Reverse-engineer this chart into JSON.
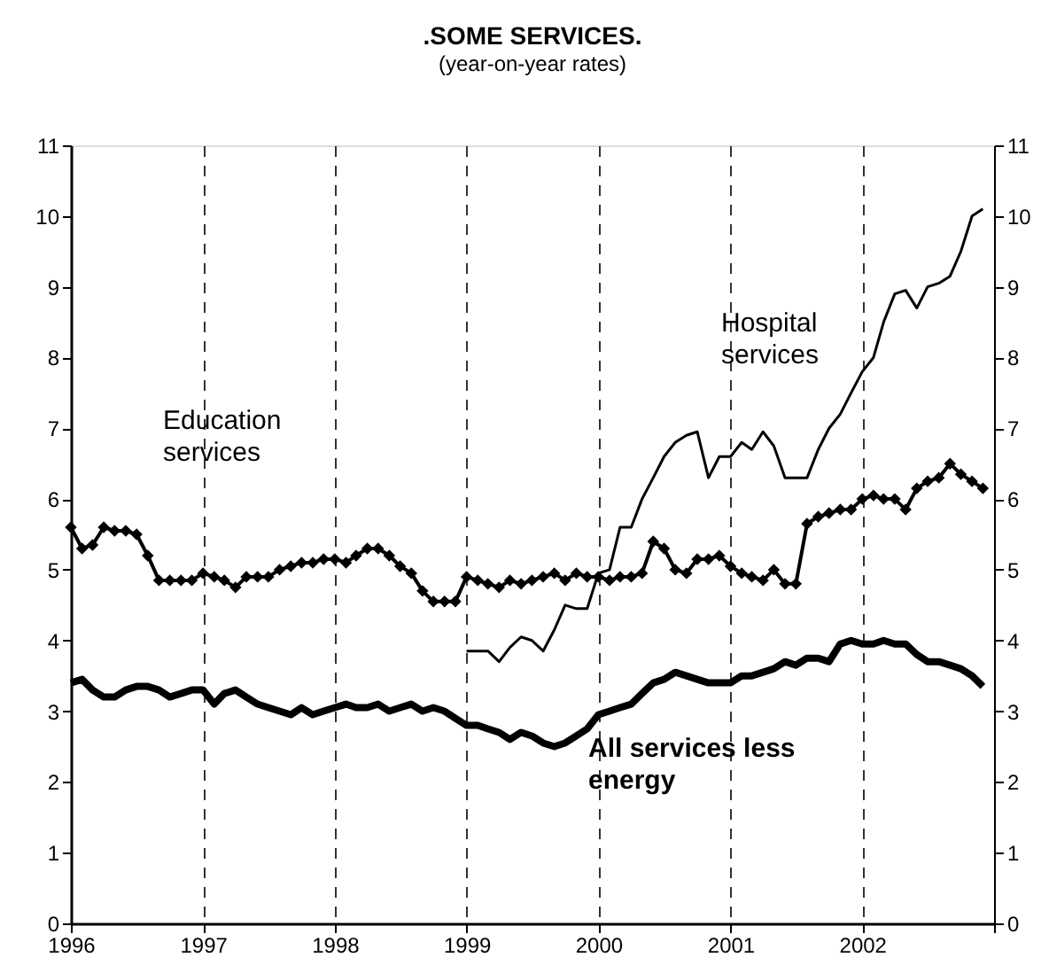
{
  "chart_data": {
    "type": "line",
    "title": ".SOME SERVICES.",
    "subtitle": "(year-on-year rates)",
    "x": [
      "1996-01",
      "1996-02",
      "1996-03",
      "1996-04",
      "1996-05",
      "1996-06",
      "1996-07",
      "1996-08",
      "1996-09",
      "1996-10",
      "1996-11",
      "1996-12",
      "1997-01",
      "1997-02",
      "1997-03",
      "1997-04",
      "1997-05",
      "1997-06",
      "1997-07",
      "1997-08",
      "1997-09",
      "1997-10",
      "1997-11",
      "1997-12",
      "1998-01",
      "1998-02",
      "1998-03",
      "1998-04",
      "1998-05",
      "1998-06",
      "1998-07",
      "1998-08",
      "1998-09",
      "1998-10",
      "1998-11",
      "1998-12",
      "1999-01",
      "1999-02",
      "1999-03",
      "1999-04",
      "1999-05",
      "1999-06",
      "1999-07",
      "1999-08",
      "1999-09",
      "1999-10",
      "1999-11",
      "1999-12",
      "2000-01",
      "2000-02",
      "2000-03",
      "2000-04",
      "2000-05",
      "2000-06",
      "2000-07",
      "2000-08",
      "2000-09",
      "2000-10",
      "2000-11",
      "2000-12",
      "2001-01",
      "2001-02",
      "2001-03",
      "2001-04",
      "2001-05",
      "2001-06",
      "2001-07",
      "2001-08",
      "2001-09",
      "2001-10",
      "2001-11",
      "2001-12",
      "2002-01",
      "2002-02",
      "2002-03",
      "2002-04",
      "2002-05",
      "2002-06",
      "2002-07",
      "2002-08",
      "2002-09",
      "2002-10",
      "2002-11",
      "2002-12"
    ],
    "series": [
      {
        "name": "Education services",
        "color": "#000000",
        "marker": "diamond",
        "values": [
          5.6,
          5.3,
          5.35,
          5.6,
          5.55,
          5.55,
          5.5,
          5.2,
          4.85,
          4.85,
          4.85,
          4.85,
          4.95,
          4.9,
          4.85,
          4.75,
          4.9,
          4.9,
          4.9,
          5.0,
          5.05,
          5.1,
          5.1,
          5.15,
          5.15,
          5.1,
          5.2,
          5.3,
          5.3,
          5.2,
          5.05,
          4.95,
          4.7,
          4.55,
          4.55,
          4.55,
          4.9,
          4.85,
          4.8,
          4.75,
          4.85,
          4.8,
          4.85,
          4.9,
          4.95,
          4.85,
          4.95,
          4.9,
          4.9,
          4.85,
          4.9,
          4.9,
          4.95,
          5.4,
          5.3,
          5.0,
          4.95,
          5.15,
          5.15,
          5.2,
          5.05,
          4.95,
          4.9,
          4.85,
          5.0,
          4.8,
          4.8,
          5.65,
          5.75,
          5.8,
          5.85,
          5.85,
          6.0,
          6.05,
          6.0,
          6.0,
          5.85,
          6.15,
          6.25,
          6.3,
          6.5,
          6.35,
          6.25,
          6.15
        ]
      },
      {
        "name": "All services less energy",
        "color": "#000000",
        "marker": "none",
        "values": [
          3.4,
          3.45,
          3.3,
          3.2,
          3.2,
          3.3,
          3.35,
          3.35,
          3.3,
          3.2,
          3.25,
          3.3,
          3.3,
          3.1,
          3.25,
          3.3,
          3.2,
          3.1,
          3.05,
          3.0,
          2.95,
          3.05,
          2.95,
          3.0,
          3.05,
          3.1,
          3.05,
          3.05,
          3.1,
          3.0,
          3.05,
          3.1,
          3.0,
          3.05,
          3.0,
          2.9,
          2.8,
          2.8,
          2.75,
          2.7,
          2.6,
          2.7,
          2.65,
          2.55,
          2.5,
          2.55,
          2.65,
          2.75,
          2.95,
          3.0,
          3.05,
          3.1,
          3.25,
          3.4,
          3.45,
          3.55,
          3.5,
          3.45,
          3.4,
          3.4,
          3.4,
          3.5,
          3.5,
          3.55,
          3.6,
          3.7,
          3.65,
          3.75,
          3.75,
          3.7,
          3.95,
          4.0,
          3.95,
          3.95,
          4.0,
          3.95,
          3.95,
          3.8,
          3.7,
          3.7,
          3.65,
          3.6,
          3.5,
          3.35
        ]
      },
      {
        "name": "Hospital services",
        "color": "#000000",
        "marker": "none",
        "axis": "y2",
        "x": [
          "1999-01",
          "1999-02",
          "1999-03",
          "1999-04",
          "1999-05",
          "1999-06",
          "1999-07",
          "1999-08",
          "1999-09",
          "1999-10",
          "1999-11",
          "1999-12",
          "2000-01",
          "2000-02",
          "2000-03",
          "2000-04",
          "2000-05",
          "2000-06",
          "2000-07",
          "2000-08",
          "2000-09",
          "2000-10",
          "2000-11",
          "2000-12",
          "2001-01",
          "2001-02",
          "2001-03",
          "2001-04",
          "2001-05",
          "2001-06",
          "2001-07",
          "2001-08",
          "2001-09",
          "2001-10",
          "2001-11",
          "2001-12",
          "2002-01",
          "2002-02",
          "2002-03",
          "2002-04",
          "2002-05",
          "2002-06",
          "2002-07",
          "2002-08",
          "2002-09",
          "2002-10",
          "2002-11",
          "2002-12"
        ],
        "values": [
          3.85,
          3.85,
          3.85,
          3.7,
          3.9,
          4.05,
          4.0,
          3.85,
          4.15,
          4.5,
          4.45,
          4.45,
          4.95,
          5.0,
          5.6,
          5.6,
          6.0,
          6.3,
          6.6,
          6.8,
          6.9,
          6.95,
          6.3,
          6.6,
          6.6,
          6.8,
          6.7,
          6.95,
          6.75,
          6.3,
          6.3,
          6.3,
          6.7,
          7.0,
          7.2,
          7.5,
          7.8,
          8.0,
          8.5,
          8.9,
          8.95,
          8.7,
          9.0,
          9.05,
          9.15,
          9.5,
          10.0,
          10.1
        ]
      }
    ],
    "xlim": [
      "1996",
      "2003"
    ],
    "xticks": [
      "1996",
      "1997",
      "1998",
      "1999",
      "2000",
      "2001",
      "2002",
      {
        "value": "2003",
        "label": null
      }
    ],
    "ylim": [
      0,
      11
    ],
    "yticks": [
      0,
      1,
      2,
      3,
      4,
      5,
      6,
      7,
      8,
      9,
      10,
      11
    ],
    "y2lim": [
      0,
      11
    ],
    "y2ticks": [
      0,
      1,
      2,
      3,
      4,
      5,
      6,
      7,
      8,
      9,
      10,
      11
    ],
    "grid": "x"
  }
}
